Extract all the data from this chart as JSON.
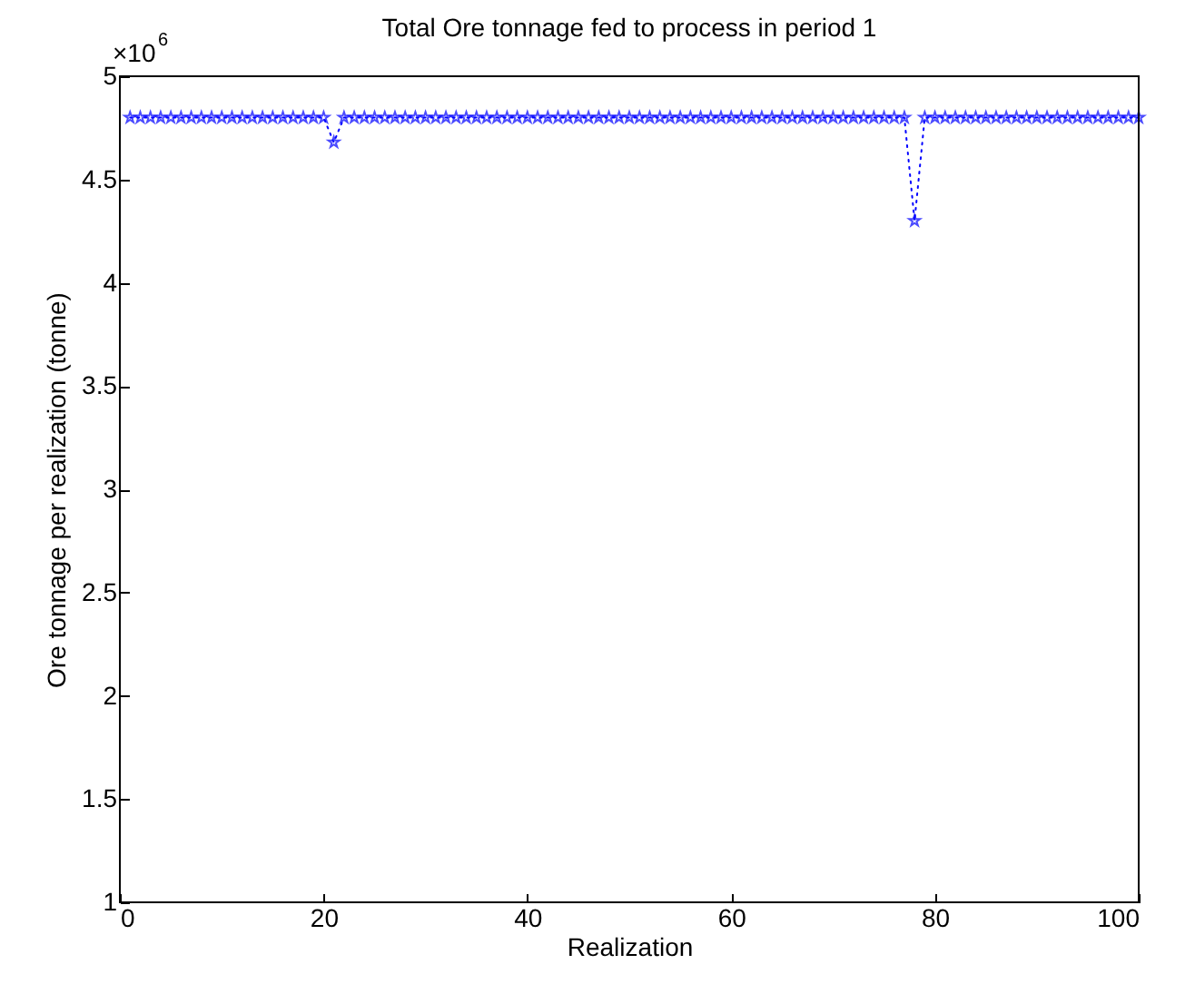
{
  "chart_data": {
    "type": "line",
    "title": "Total Ore tonnage fed to process in period 1",
    "xlabel": "Realization",
    "ylabel": "Ore tonnage per realization (tonne)",
    "annotations": [
      "×10$^{6}$"
    ],
    "x": [
      1,
      2,
      3,
      4,
      5,
      6,
      7,
      8,
      9,
      10,
      11,
      12,
      13,
      14,
      15,
      16,
      17,
      18,
      19,
      20,
      21,
      22,
      23,
      24,
      25,
      26,
      27,
      28,
      29,
      30,
      31,
      32,
      33,
      34,
      35,
      36,
      37,
      38,
      39,
      40,
      41,
      42,
      43,
      44,
      45,
      46,
      47,
      48,
      49,
      50,
      51,
      52,
      53,
      54,
      55,
      56,
      57,
      58,
      59,
      60,
      61,
      62,
      63,
      64,
      65,
      66,
      67,
      68,
      69,
      70,
      71,
      72,
      73,
      74,
      75,
      76,
      77,
      78,
      79,
      80,
      81,
      82,
      83,
      84,
      85,
      86,
      87,
      88,
      89,
      90,
      91,
      92,
      93,
      94,
      95,
      96,
      97,
      98,
      99,
      100
    ],
    "series": [
      {
        "color": "#0000ff",
        "values": [
          4.8,
          4.8,
          4.8,
          4.8,
          4.8,
          4.8,
          4.8,
          4.8,
          4.8,
          4.8,
          4.8,
          4.8,
          4.8,
          4.8,
          4.8,
          4.8,
          4.8,
          4.8,
          4.8,
          4.8,
          4.68,
          4.8,
          4.8,
          4.8,
          4.8,
          4.8,
          4.8,
          4.8,
          4.8,
          4.8,
          4.8,
          4.8,
          4.8,
          4.8,
          4.8,
          4.8,
          4.8,
          4.8,
          4.8,
          4.8,
          4.8,
          4.8,
          4.8,
          4.8,
          4.8,
          4.8,
          4.8,
          4.8,
          4.8,
          4.8,
          4.8,
          4.8,
          4.8,
          4.8,
          4.8,
          4.8,
          4.8,
          4.8,
          4.8,
          4.8,
          4.8,
          4.8,
          4.8,
          4.8,
          4.8,
          4.8,
          4.8,
          4.8,
          4.8,
          4.8,
          4.8,
          4.8,
          4.8,
          4.8,
          4.8,
          4.8,
          4.8,
          4.3,
          4.8,
          4.8,
          4.8,
          4.8,
          4.8,
          4.8,
          4.8,
          4.8,
          4.8,
          4.8,
          4.8,
          4.8,
          4.8,
          4.8,
          4.8,
          4.8,
          4.8,
          4.8,
          4.8,
          4.8,
          4.8,
          4.8
        ]
      }
    ],
    "xlim": [
      0,
      100
    ],
    "xticks": [
      0,
      20,
      40,
      60,
      80,
      100
    ],
    "ylim": [
      1,
      5
    ],
    "yticks": [
      1,
      1.5,
      2,
      2.5,
      3,
      3.5,
      4,
      4.5,
      5
    ],
    "marker": "star",
    "line_style": "dotted"
  }
}
